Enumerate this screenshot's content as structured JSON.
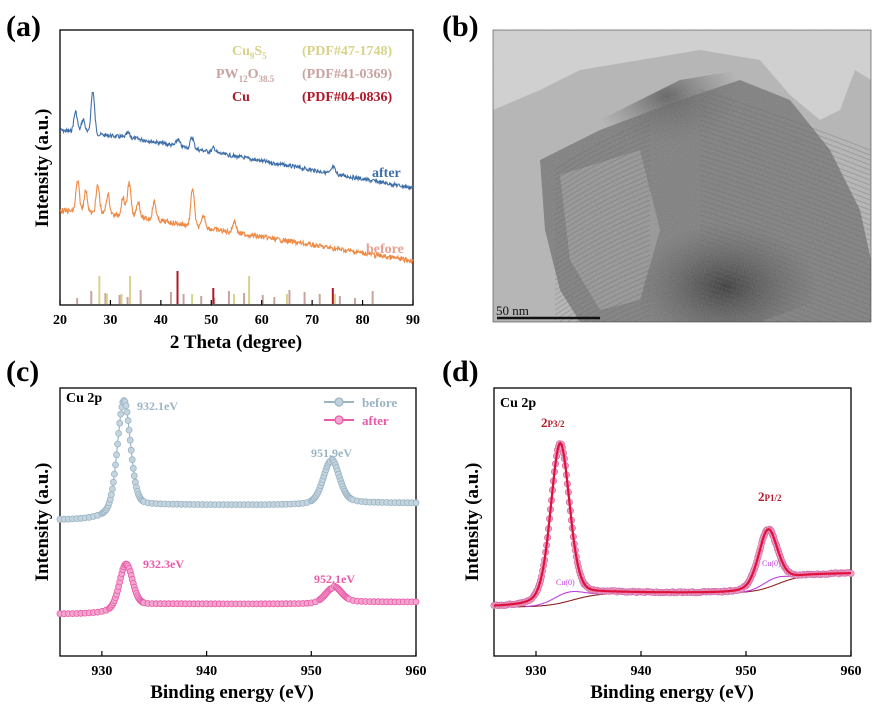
{
  "panels": {
    "a": {
      "label": "(a)"
    },
    "b": {
      "label": "(b)",
      "scale_bar": "50 nm"
    },
    "c": {
      "label": "(c)"
    },
    "d": {
      "label": "(d)"
    }
  },
  "colors": {
    "after_xrd": "#3f6fa9",
    "before_xrd": "#ed8a45",
    "cu9s5": "#d7d38a",
    "pw12o": "#c9a3a0",
    "cu_ref": "#b0182a",
    "xps_before": "#9ab4c4",
    "xps_after": "#e85aa8",
    "fit_red": "#e0103a",
    "fit_marker": "#f0a0c8",
    "cu0": "#c040e0",
    "background_line": "#8b2222"
  },
  "chart_data": [
    {
      "id": "a",
      "type": "line",
      "title": "",
      "xlabel": "2 Theta (degree)",
      "ylabel": "Intensity (a.u.)",
      "xlim": [
        20,
        90
      ],
      "xticks": [
        20,
        30,
        40,
        50,
        60,
        70,
        80,
        90
      ],
      "legend_refs": [
        {
          "name": "Cu",
          "sub": "9",
          "name2": "S",
          "sub2": "5",
          "pdf": "(PDF#47-1748)"
        },
        {
          "name": "PW",
          "sub": "12",
          "name2": "O",
          "sub2": "38.5",
          "pdf": "(PDF#41-0369)"
        },
        {
          "name": "Cu",
          "sub": "",
          "name2": "",
          "sub2": "",
          "pdf": "(PDF#04-0836)"
        }
      ],
      "series": [
        {
          "name": "after",
          "peaks": [
            [
              23.1,
              0.45
            ],
            [
              24.6,
              0.3
            ],
            [
              26.5,
              0.95
            ],
            [
              33.5,
              0.1
            ],
            [
              43.4,
              0.15
            ],
            [
              46.2,
              0.25
            ],
            [
              50.5,
              0.1
            ],
            [
              74.2,
              0.15
            ]
          ]
        },
        {
          "name": "before",
          "peaks": [
            [
              23.5,
              0.75
            ],
            [
              25.1,
              0.55
            ],
            [
              27.5,
              0.7
            ],
            [
              29.5,
              0.5
            ],
            [
              32.5,
              0.45
            ],
            [
              33.7,
              0.85
            ],
            [
              35.5,
              0.4
            ],
            [
              38.7,
              0.45
            ],
            [
              46.3,
              0.95
            ],
            [
              48.5,
              0.3
            ],
            [
              54.6,
              0.3
            ]
          ]
        }
      ],
      "reference_lines": {
        "cu9s5": [
          27.8,
          29.3,
          32.2,
          33.9,
          46.2,
          54.5,
          57.5,
          65.0,
          74.5
        ],
        "pw12o": [
          23.4,
          26.2,
          29.0,
          31.8,
          33.4,
          36.0,
          42.0,
          44.5,
          48.0,
          50.6,
          53.5,
          56.5,
          60.2,
          62.5,
          65.5,
          68.5,
          71.5,
          75.5,
          78.5,
          82.0
        ],
        "cu_ref": [
          43.3,
          50.4,
          74.1
        ]
      }
    },
    {
      "id": "c",
      "type": "line",
      "title": "Cu 2p",
      "xlabel": "Binding energy (eV)",
      "ylabel": "Intensity (a.u.)",
      "xlim": [
        926,
        960
      ],
      "xticks": [
        930,
        940,
        950,
        960
      ],
      "series": [
        {
          "name": "before",
          "peaks": [
            [
              932.1,
              "932.1eV"
            ],
            [
              951.9,
              "951.9eV"
            ]
          ]
        },
        {
          "name": "after",
          "peaks": [
            [
              932.3,
              "932.3eV"
            ],
            [
              952.1,
              "952.1eV"
            ]
          ]
        }
      ]
    },
    {
      "id": "d",
      "type": "line",
      "title": "Cu 2p",
      "xlabel": "Binding energy (eV)",
      "ylabel": "Intensity (a.u.)",
      "xlim": [
        926,
        960
      ],
      "xticks": [
        930,
        940,
        950,
        960
      ],
      "peak_labels": [
        {
          "main": "2",
          "sub": "P3/2",
          "x": 932.3
        },
        {
          "main": "2",
          "sub": "P1/2",
          "x": 952.1
        }
      ],
      "component_labels": [
        {
          "text": "Cu(0)",
          "x": 933.0
        },
        {
          "text": "Cu(0)",
          "x": 952.7
        }
      ]
    }
  ]
}
